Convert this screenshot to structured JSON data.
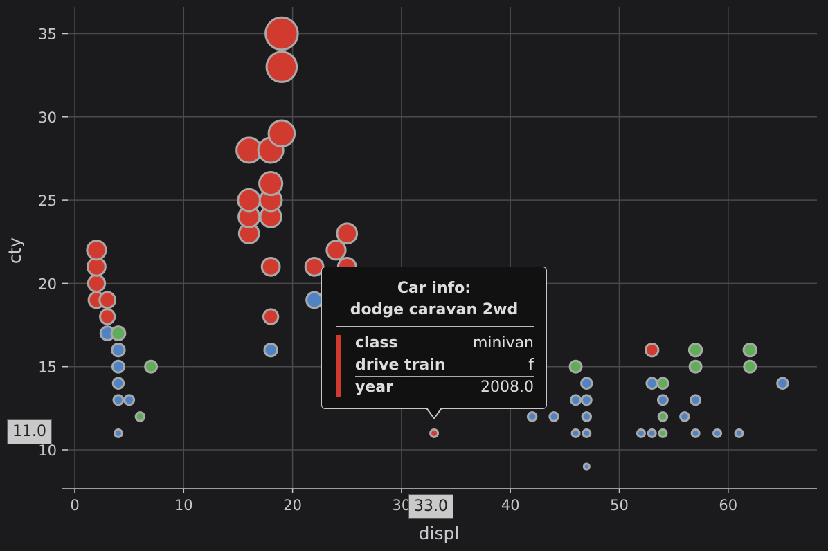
{
  "chart_data": {
    "type": "scatter",
    "title": "",
    "xlabel": "displ",
    "ylabel": "cty",
    "xlim": [
      -1,
      68
    ],
    "ylim": [
      7.7,
      36.8
    ],
    "xticks": [
      "0",
      "10",
      "20",
      "30",
      "40",
      "50",
      "60"
    ],
    "yticks": [
      "10",
      "15",
      "20",
      "25",
      "30",
      "35"
    ],
    "grid": true,
    "legend": "none",
    "size_encoding": "cty",
    "series": [
      {
        "color": "#d03a2f",
        "points": [
          [
            2,
            22
          ],
          [
            2,
            21
          ],
          [
            2,
            20
          ],
          [
            2,
            19
          ],
          [
            3,
            19
          ],
          [
            3,
            18
          ],
          [
            16,
            28
          ],
          [
            16,
            25
          ],
          [
            16,
            24
          ],
          [
            16,
            23
          ],
          [
            18,
            28
          ],
          [
            18,
            26
          ],
          [
            18,
            25
          ],
          [
            18,
            24
          ],
          [
            18,
            21
          ],
          [
            18,
            18
          ],
          [
            19,
            35
          ],
          [
            19,
            33
          ],
          [
            19,
            29
          ],
          [
            22,
            21
          ],
          [
            24,
            22
          ],
          [
            25,
            23
          ],
          [
            25,
            21
          ],
          [
            33,
            11
          ],
          [
            53,
            16
          ]
        ]
      },
      {
        "color": "#4f83c4",
        "points": [
          [
            3,
            17
          ],
          [
            4,
            16
          ],
          [
            4,
            15
          ],
          [
            4,
            14
          ],
          [
            4,
            13
          ],
          [
            4,
            11
          ],
          [
            5,
            13
          ],
          [
            18,
            16
          ],
          [
            22,
            19
          ],
          [
            42,
            12
          ],
          [
            44,
            12
          ],
          [
            46,
            13
          ],
          [
            46,
            11
          ],
          [
            47,
            14
          ],
          [
            47,
            13
          ],
          [
            47,
            12
          ],
          [
            47,
            11
          ],
          [
            47,
            9
          ],
          [
            52,
            11
          ],
          [
            53,
            14
          ],
          [
            53,
            11
          ],
          [
            54,
            13
          ],
          [
            56,
            12
          ],
          [
            57,
            13
          ],
          [
            57,
            11
          ],
          [
            59,
            11
          ],
          [
            61,
            11
          ],
          [
            65,
            14
          ]
        ]
      },
      {
        "color": "#5fae57",
        "points": [
          [
            4,
            17
          ],
          [
            6,
            12
          ],
          [
            7,
            15
          ],
          [
            46,
            15
          ],
          [
            54,
            14
          ],
          [
            54,
            12
          ],
          [
            54,
            11
          ],
          [
            57,
            16
          ],
          [
            57,
            15
          ],
          [
            62,
            16
          ],
          [
            62,
            15
          ]
        ]
      }
    ],
    "crosshair": {
      "x_label": "33.0",
      "y_label": "11.0",
      "x": 33,
      "y": 11
    },
    "tooltip": {
      "title_line1": "Car info:",
      "title_line2": "dodge caravan 2wd",
      "color": "#d03a2f",
      "rows": [
        {
          "key": "class",
          "value": "minivan"
        },
        {
          "key": "drive train",
          "value": "f"
        },
        {
          "key": "year",
          "value": "2008.0"
        }
      ]
    }
  }
}
